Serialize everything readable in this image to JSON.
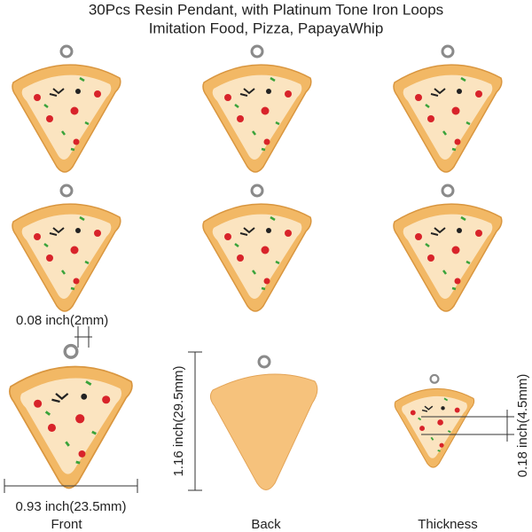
{
  "header": {
    "title_line1": "30Pcs Resin Pendant, with Platinum Tone Iron Loops",
    "title_line2": "Imitation Food, Pizza, PapayaWhip"
  },
  "dimensions": {
    "loop": "0.08 inch(2mm)",
    "height": "1.16 inch(29.5mm)",
    "thickness": "0.18 inch(4.5mm)",
    "width": "0.93 inch(23.5mm)"
  },
  "captions": {
    "front": "Front",
    "back": "Back",
    "thickness": "Thickness"
  }
}
